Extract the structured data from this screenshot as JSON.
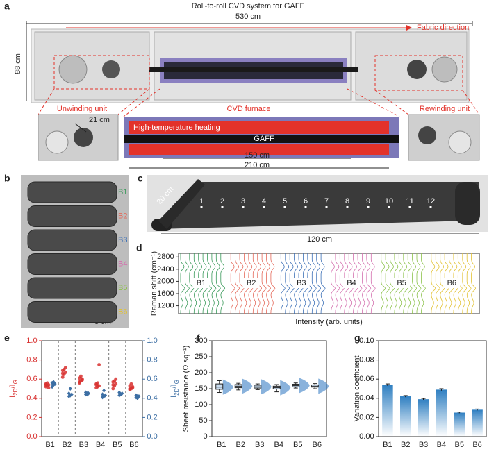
{
  "panel_a": {
    "label": "a",
    "title": "Roll-to-roll CVD system for GAFF",
    "width_label": "530 cm",
    "direction_label": "Fabric direction",
    "height_label": "88 cm",
    "units": [
      "Unwinding unit",
      "CVD furnace",
      "Rewinding unit"
    ],
    "roll_label": "21 cm",
    "heating_label": "High-temperature heating",
    "fabric_label": "GAFF",
    "zone_labels": [
      "150 cm",
      "210 cm"
    ]
  },
  "panel_b": {
    "label": "b",
    "rolls": [
      "B1",
      "B2",
      "B3",
      "B4",
      "B5",
      "B6"
    ],
    "scale_label": "5 cm"
  },
  "panel_c": {
    "label": "c",
    "width_label": "20 cm",
    "positions": [
      "1",
      "2",
      "3",
      "4",
      "5",
      "6",
      "7",
      "8",
      "9",
      "10",
      "11",
      "12"
    ],
    "length_label": "120 cm"
  },
  "chart_data": [
    {
      "type": "spectra",
      "label": "d",
      "ylabel": "Raman shift (cm⁻¹)",
      "xlabel": "Intensity (arb. units)",
      "categories": [
        "B1",
        "B2",
        "B3",
        "B4",
        "B5",
        "B6"
      ],
      "colors": [
        "#3a9a5a",
        "#e4695a",
        "#3b6fb6",
        "#d46fae",
        "#8cc24a",
        "#e2c232"
      ],
      "ylim": [
        940,
        2920
      ],
      "yticks": [
        1200,
        1600,
        2000,
        2400,
        2800
      ]
    },
    {
      "type": "dot",
      "label": "e",
      "ylabel": [
        "I",
        "2D",
        "/I",
        "G"
      ],
      "y2label": [
        "I",
        "2D",
        "/I",
        "G"
      ],
      "categories": [
        "B1",
        "B2",
        "B3",
        "B4",
        "B5",
        "B6"
      ],
      "series": [
        {
          "color": "#d8302f",
          "marker": "circle",
          "values": [
            [
              0.52,
              0.53,
              0.54,
              0.55,
              0.56,
              0.51,
              0.54
            ],
            [
              0.62,
              0.65,
              0.67,
              0.69,
              0.7,
              0.72,
              0.66
            ],
            [
              0.56,
              0.58,
              0.6,
              0.61,
              0.63,
              0.59,
              0.57
            ],
            [
              0.51,
              0.52,
              0.53,
              0.55,
              0.56,
              0.75,
              0.54
            ],
            [
              0.5,
              0.53,
              0.55,
              0.57,
              0.58,
              0.6,
              0.54
            ],
            [
              0.49,
              0.5,
              0.52,
              0.53,
              0.55,
              0.51,
              0.5
            ]
          ]
        },
        {
          "color": "#3d6fa4",
          "marker": "diamond",
          "axis": "y2",
          "values": [
            [
              0.52,
              0.54,
              0.55,
              0.56,
              0.57
            ],
            [
              0.42,
              0.43,
              0.44,
              0.45,
              0.5
            ],
            [
              0.44,
              0.45,
              0.45,
              0.46,
              0.44
            ],
            [
              0.41,
              0.42,
              0.43,
              0.44,
              0.48
            ],
            [
              0.43,
              0.44,
              0.45,
              0.46,
              0.44
            ],
            [
              0.41,
              0.42,
              0.42,
              0.43,
              0.4
            ]
          ]
        }
      ],
      "ylim": [
        0,
        1
      ],
      "yticks": [
        {
          "value": 0,
          "label": "0.0"
        },
        {
          "value": 0.2,
          "label": "0.2"
        },
        {
          "value": 0.4,
          "label": "0.4"
        },
        {
          "value": 0.6,
          "label": "0.6"
        },
        {
          "value": 0.8,
          "label": "0.8"
        },
        {
          "value": 1,
          "label": "1.0"
        }
      ],
      "y2lim": [
        0,
        1
      ],
      "y2ticks": [
        {
          "value": 0,
          "label": "0.0"
        },
        {
          "value": 0.2,
          "label": "0.2"
        },
        {
          "value": 0.4,
          "label": "0.4"
        },
        {
          "value": 0.6,
          "label": "0.6"
        },
        {
          "value": 0.8,
          "label": "0.8"
        },
        {
          "value": 1,
          "label": "1.0"
        }
      ]
    },
    {
      "type": "box",
      "label": "f",
      "ylabel": "Sheet resistance (Ω sq⁻¹)",
      "categories": [
        "B1",
        "B2",
        "B3",
        "B4",
        "B5",
        "B6"
      ],
      "min": [
        138,
        146,
        147,
        140,
        152,
        150
      ],
      "q1": [
        148,
        153,
        152,
        149,
        156,
        155
      ],
      "median": [
        155,
        158,
        156,
        153,
        160,
        158
      ],
      "q3": [
        165,
        163,
        161,
        158,
        164,
        162
      ],
      "max": [
        175,
        167,
        165,
        163,
        168,
        166
      ],
      "color": "#3b7fc4",
      "ylim": [
        0,
        300
      ],
      "yticks": [
        0,
        50,
        100,
        150,
        200,
        250,
        300
      ]
    },
    {
      "type": "bar",
      "label": "g",
      "ylabel": "Variation coefficient",
      "categories": [
        "B1",
        "B2",
        "B3",
        "B4",
        "B5",
        "B6"
      ],
      "values": [
        0.054,
        0.042,
        0.039,
        0.049,
        0.025,
        0.028
      ],
      "errors": [
        0.001,
        0.0008,
        0.0008,
        0.001,
        0.0006,
        0.0007
      ],
      "color": "#2f7fc1",
      "ylim": [
        0,
        0.1
      ],
      "yticks": [
        {
          "value": 0,
          "label": "0.00"
        },
        {
          "value": 0.02,
          "label": "0.02"
        },
        {
          "value": 0.04,
          "label": "0.04"
        },
        {
          "value": 0.06,
          "label": "0.06"
        },
        {
          "value": 0.08,
          "label": "0.08"
        },
        {
          "value": 0.1,
          "label": "0.10"
        }
      ]
    }
  ]
}
